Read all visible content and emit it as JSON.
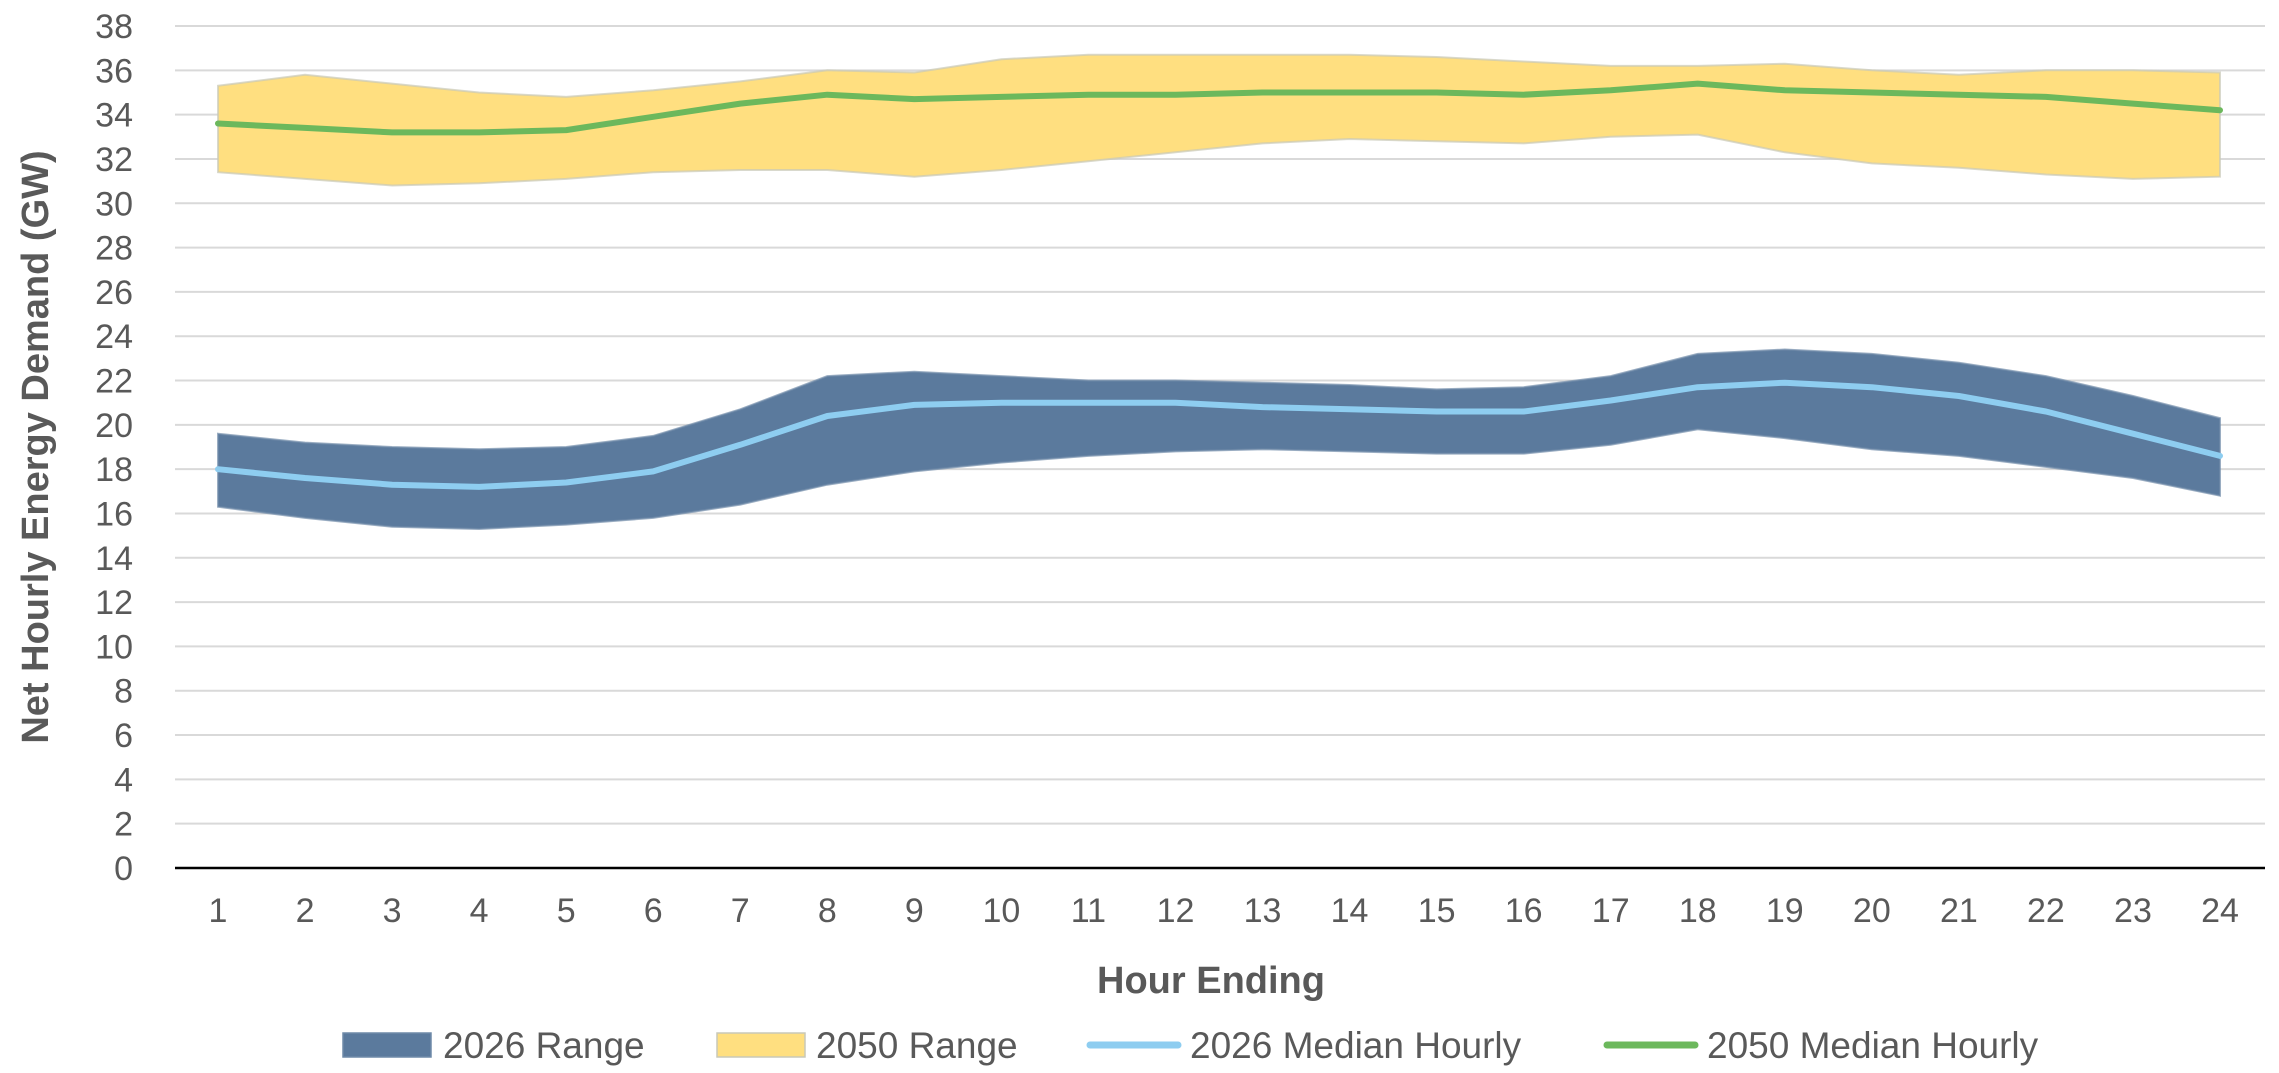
{
  "chart_data": {
    "type": "area",
    "title": "",
    "xlabel": "Hour Ending",
    "ylabel": "Net Hourly Energy Demand (GW)",
    "ylim": [
      0,
      38
    ],
    "yticks": [
      0,
      2,
      4,
      6,
      8,
      10,
      12,
      14,
      16,
      18,
      20,
      22,
      24,
      26,
      28,
      30,
      32,
      34,
      36,
      38
    ],
    "x": [
      1,
      2,
      3,
      4,
      5,
      6,
      7,
      8,
      9,
      10,
      11,
      12,
      13,
      14,
      15,
      16,
      17,
      18,
      19,
      20,
      21,
      22,
      23,
      24
    ],
    "grid": true,
    "legend_position": "bottom",
    "ranges": [
      {
        "name": "2026 Range",
        "color": "#5b7a9d",
        "low": [
          16.3,
          15.8,
          15.4,
          15.3,
          15.5,
          15.8,
          16.4,
          17.3,
          17.9,
          18.3,
          18.6,
          18.8,
          18.9,
          18.8,
          18.7,
          18.7,
          19.1,
          19.8,
          19.4,
          18.9,
          18.6,
          18.1,
          17.6,
          16.8
        ],
        "high": [
          19.6,
          19.2,
          19.0,
          18.9,
          19.0,
          19.5,
          20.7,
          22.2,
          22.4,
          22.2,
          22.0,
          22.0,
          21.9,
          21.8,
          21.6,
          21.7,
          22.2,
          23.2,
          23.4,
          23.2,
          22.8,
          22.2,
          21.3,
          20.3
        ]
      },
      {
        "name": "2050 Range",
        "color": "#ffdf80",
        "low": [
          31.4,
          31.1,
          30.8,
          30.9,
          31.1,
          31.4,
          31.5,
          31.5,
          31.2,
          31.5,
          31.9,
          32.3,
          32.7,
          32.9,
          32.8,
          32.7,
          33.0,
          33.1,
          32.3,
          31.8,
          31.6,
          31.3,
          31.1,
          31.2
        ],
        "high": [
          35.3,
          35.8,
          35.4,
          35.0,
          34.8,
          35.1,
          35.5,
          36.0,
          35.9,
          36.5,
          36.7,
          36.7,
          36.7,
          36.7,
          36.6,
          36.4,
          36.2,
          36.2,
          36.3,
          36.0,
          35.8,
          36.0,
          36.0,
          35.9
        ]
      }
    ],
    "series": [
      {
        "name": "2026 Median Hourly",
        "color": "#8ecdf0",
        "values": [
          18.0,
          17.6,
          17.3,
          17.2,
          17.4,
          17.9,
          19.1,
          20.4,
          20.9,
          21.0,
          21.0,
          21.0,
          20.8,
          20.7,
          20.6,
          20.6,
          21.1,
          21.7,
          21.9,
          21.7,
          21.3,
          20.6,
          19.6,
          18.6
        ]
      },
      {
        "name": "2050 Median Hourly",
        "color": "#6cb85c",
        "values": [
          33.6,
          33.4,
          33.2,
          33.2,
          33.3,
          33.9,
          34.5,
          34.9,
          34.7,
          34.8,
          34.9,
          34.9,
          35.0,
          35.0,
          35.0,
          34.9,
          35.1,
          35.4,
          35.1,
          35.0,
          34.9,
          34.8,
          34.5,
          34.2
        ]
      }
    ]
  }
}
